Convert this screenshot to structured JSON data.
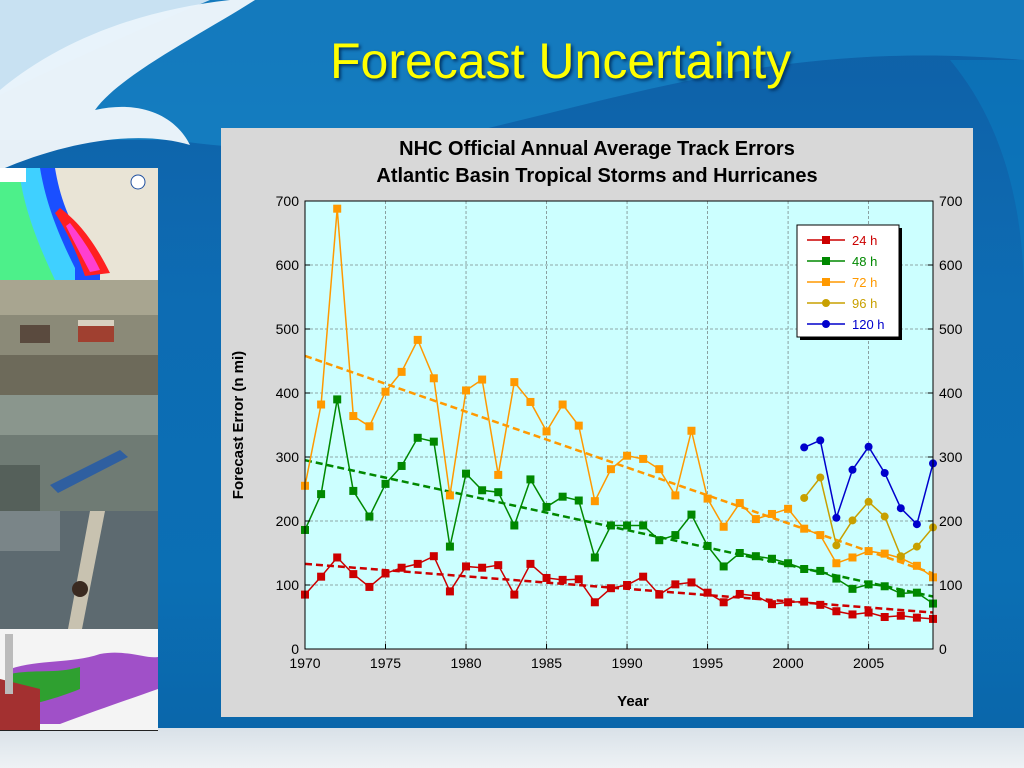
{
  "slide": {
    "title": "Forecast Uncertainty"
  },
  "photos": [
    {
      "name": "surge-map-image"
    },
    {
      "name": "damaged-houses-image"
    },
    {
      "name": "flooded-area-barge-image"
    },
    {
      "name": "bridge-damage-image"
    },
    {
      "name": "inundation-map-image"
    }
  ],
  "chart_data": {
    "type": "line",
    "title": "NHC Official Annual Average Track Errors",
    "subtitle": "Atlantic Basin Tropical Storms and Hurricanes",
    "xlabel": "Year",
    "ylabel": "Forecast Error (n mi)",
    "xlim": [
      1970,
      2009
    ],
    "ylim": [
      0,
      700
    ],
    "x_ticks": [
      1970,
      1975,
      1980,
      1985,
      1990,
      1995,
      2000,
      2005
    ],
    "y_ticks": [
      0,
      100,
      200,
      300,
      400,
      500,
      600,
      700
    ],
    "legend_position": "top-right",
    "grid": true,
    "series": [
      {
        "name": "24 h",
        "color": "#cc0000",
        "marker": "square",
        "x_start": 1970,
        "values": [
          85,
          113,
          143,
          117,
          97,
          118,
          127,
          133,
          145,
          90,
          129,
          127,
          131,
          85,
          133,
          111,
          108,
          109,
          73,
          95,
          100,
          113,
          85,
          101,
          104,
          88,
          73,
          86,
          83,
          70,
          73,
          74,
          69,
          59,
          54,
          57,
          50,
          52,
          49,
          47
        ],
        "trend": [
          [
            1970,
            133
          ],
          [
            2009,
            57
          ]
        ]
      },
      {
        "name": "48 h",
        "color": "#008800",
        "marker": "square",
        "x_start": 1970,
        "values": [
          186,
          242,
          390,
          247,
          207,
          258,
          286,
          330,
          324,
          160,
          274,
          248,
          245,
          193,
          265,
          222,
          238,
          232,
          143,
          193,
          193,
          193,
          170,
          178,
          210,
          161,
          129,
          150,
          145,
          141,
          134,
          125,
          122,
          110,
          94,
          101,
          98,
          87,
          88,
          71
        ],
        "trend": [
          [
            1970,
            295
          ],
          [
            2009,
            82
          ]
        ]
      },
      {
        "name": "72 h",
        "color": "#ff9900",
        "marker": "square",
        "x_start": 1970,
        "values": [
          255,
          382,
          688,
          364,
          348,
          402,
          433,
          483,
          423,
          240,
          404,
          421,
          272,
          417,
          386,
          340,
          382,
          349,
          231,
          281,
          302,
          297,
          281,
          240,
          341,
          235,
          191,
          228,
          203,
          211,
          219,
          188,
          178,
          134,
          143,
          153,
          149,
          142,
          130,
          112
        ],
        "trend": [
          [
            1970,
            458
          ],
          [
            2009,
            118
          ]
        ]
      },
      {
        "name": "96 h",
        "color": "#c8a000",
        "marker": "circle",
        "x_start": 2001,
        "values": [
          236,
          268,
          162,
          201,
          230,
          207,
          145,
          160,
          190
        ]
      },
      {
        "name": "120 h",
        "color": "#0000cc",
        "marker": "circle",
        "x_start": 2001,
        "values": [
          315,
          326,
          205,
          280,
          316,
          275,
          220,
          195,
          290
        ]
      }
    ]
  }
}
